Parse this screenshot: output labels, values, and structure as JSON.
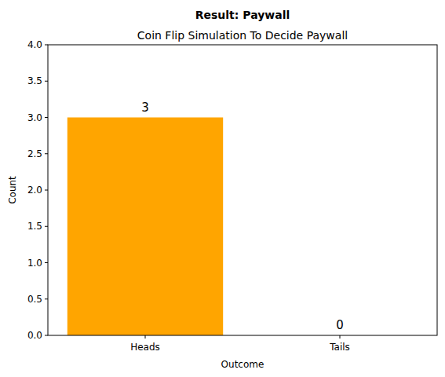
{
  "chart_data": {
    "type": "bar",
    "title": "Result: Paywall",
    "subtitle": "Coin Flip Simulation To Decide Paywall",
    "x_label": "Outcome",
    "y_label": "Count",
    "categories": [
      "Heads",
      "Tails"
    ],
    "values": [
      3,
      0
    ],
    "color": "#ffa500",
    "ylim": [
      0,
      4
    ],
    "yticks": [
      {
        "value": 0,
        "label": "0.0"
      },
      {
        "value": 0.5,
        "label": "0.5"
      },
      {
        "value": 1,
        "label": "1.0"
      },
      {
        "value": 1.5,
        "label": "1.5"
      },
      {
        "value": 2,
        "label": "2.0"
      },
      {
        "value": 2.5,
        "label": "2.5"
      },
      {
        "value": 3,
        "label": "3.0"
      },
      {
        "value": 3.5,
        "label": "3.5"
      },
      {
        "value": 4,
        "label": "4.0"
      }
    ],
    "data_labels": true,
    "grid": false
  }
}
